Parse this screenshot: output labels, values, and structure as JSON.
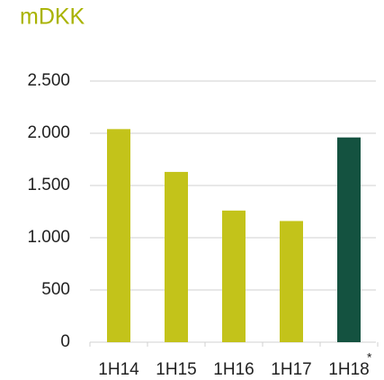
{
  "chart_data": {
    "type": "bar",
    "title": "mDKK",
    "categories": [
      "1H14",
      "1H15",
      "1H16",
      "1H17",
      "1H18"
    ],
    "superscripts": [
      null,
      null,
      null,
      null,
      "*"
    ],
    "values": [
      2040,
      1630,
      1260,
      1160,
      1960
    ],
    "colors": [
      "#c3c31a",
      "#c3c31a",
      "#c3c31a",
      "#c3c31a",
      "#145240"
    ],
    "ylim": [
      0,
      2500
    ],
    "yticks": [
      0,
      500,
      {
        "value": 1000,
        "label": "1.000"
      },
      {
        "value": 1500,
        "label": "1.500"
      },
      {
        "value": 2000,
        "label": "2.000"
      },
      {
        "value": 2500,
        "label": "2.500"
      }
    ],
    "grid": true
  }
}
